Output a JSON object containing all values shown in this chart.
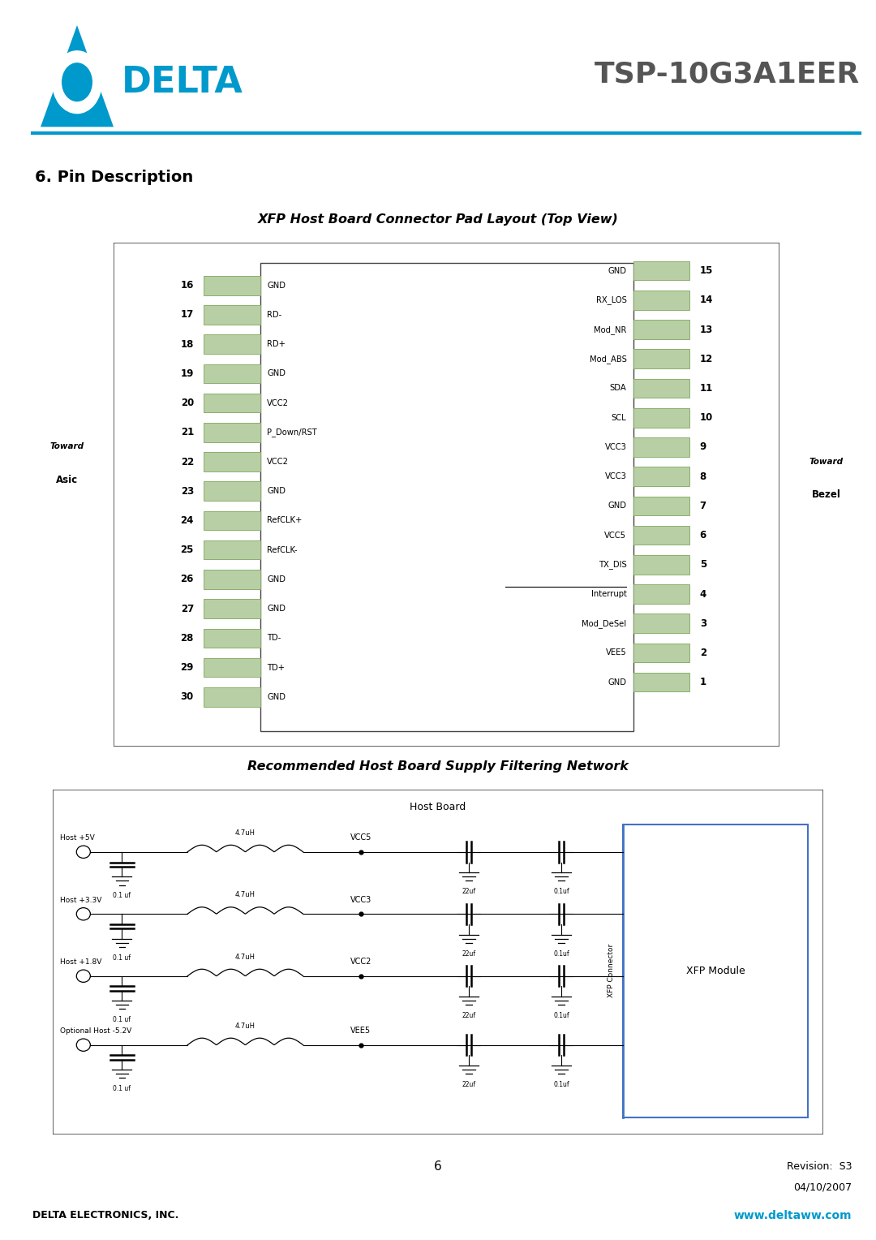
{
  "title": "TSP-10G3A1EER",
  "section_title": "6. Pin Description",
  "diagram_title": "XFP Host Board Connector Pad Layout (Top View)",
  "diagram2_title": "Recommended Host Board Supply Filtering Network",
  "page_number": "6",
  "revision_line1": "Revision:  S3",
  "revision_line2": "04/10/2007",
  "company": "DELTA ELECTRONICS, INC.",
  "website": "www.deltaww.com",
  "pad_color": "#b8cfa5",
  "pad_border": "#8aaf6a",
  "left_pins": [
    {
      "num": "16",
      "label": "GND"
    },
    {
      "num": "17",
      "label": "RD-"
    },
    {
      "num": "18",
      "label": "RD+"
    },
    {
      "num": "19",
      "label": "GND"
    },
    {
      "num": "20",
      "label": "VCC2"
    },
    {
      "num": "21",
      "label": "P_Down/RST"
    },
    {
      "num": "22",
      "label": "VCC2"
    },
    {
      "num": "23",
      "label": "GND"
    },
    {
      "num": "24",
      "label": "RefCLK+"
    },
    {
      "num": "25",
      "label": "RefCLK-"
    },
    {
      "num": "26",
      "label": "GND"
    },
    {
      "num": "27",
      "label": "GND"
    },
    {
      "num": "28",
      "label": "TD-"
    },
    {
      "num": "29",
      "label": "TD+"
    },
    {
      "num": "30",
      "label": "GND"
    }
  ],
  "right_pins": [
    {
      "num": "15",
      "label": "GND",
      "overline": false
    },
    {
      "num": "14",
      "label": "RX_LOS",
      "overline": false
    },
    {
      "num": "13",
      "label": "Mod_NR",
      "overline": false
    },
    {
      "num": "12",
      "label": "Mod_ABS",
      "overline": false
    },
    {
      "num": "11",
      "label": "SDA",
      "overline": false
    },
    {
      "num": "10",
      "label": "SCL",
      "overline": false
    },
    {
      "num": "9",
      "label": "VCC3",
      "overline": false
    },
    {
      "num": "8",
      "label": "VCC3",
      "overline": false
    },
    {
      "num": "7",
      "label": "GND",
      "overline": false
    },
    {
      "num": "6",
      "label": "VCC5",
      "overline": false
    },
    {
      "num": "5",
      "label": "TX_DIS",
      "overline": false
    },
    {
      "num": "4",
      "label": "Interrupt",
      "overline": true
    },
    {
      "num": "3",
      "label": "Mod_DeSel",
      "overline": false
    },
    {
      "num": "2",
      "label": "VEE5",
      "overline": false
    },
    {
      "num": "1",
      "label": "GND",
      "overline": false
    }
  ],
  "supply_rows": [
    {
      "label": "Host +5V",
      "ind": "4.7uH",
      "c1": "0.1 uf",
      "c2": "22uf",
      "c3": "0.1uf",
      "vcc": "VCC5"
    },
    {
      "label": "Host +3.3V",
      "ind": "4.7uH",
      "c1": "0.1 uf",
      "c2": "22uf",
      "c3": "0.1uf",
      "vcc": "VCC3"
    },
    {
      "label": "Host +1.8V",
      "ind": "4.7uH",
      "c1": "0.1 uf",
      "c2": "22uf",
      "c3": "0.1uf",
      "vcc": "VCC2"
    },
    {
      "label": "Optional Host -5.2V",
      "ind": "4.7uH",
      "c1": "0.1 uf",
      "c2": "22uf",
      "c3": "0.1uf",
      "vcc": "VEE5"
    }
  ]
}
